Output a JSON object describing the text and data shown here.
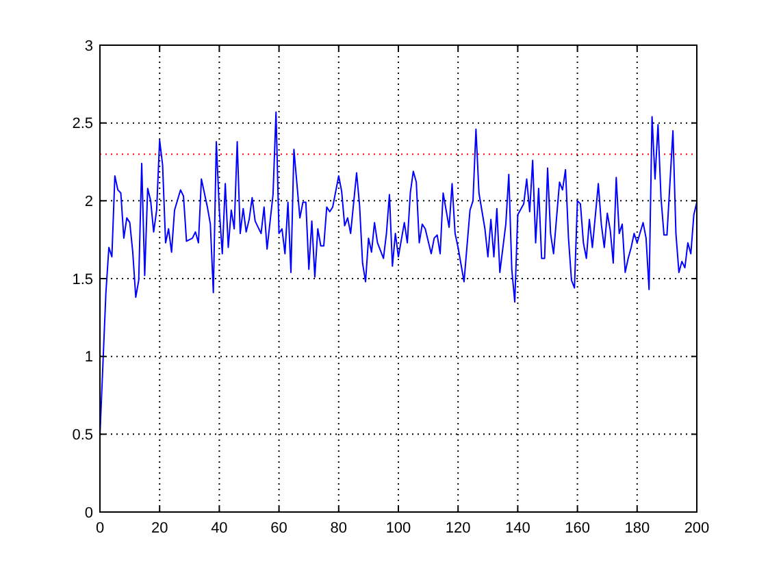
{
  "chart_data": {
    "type": "line",
    "xlim": [
      0,
      200
    ],
    "ylim": [
      0,
      3
    ],
    "xticks": [
      0,
      20,
      40,
      60,
      80,
      100,
      120,
      140,
      160,
      180,
      200
    ],
    "yticks": [
      0,
      0.5,
      1,
      1.5,
      2,
      2.5,
      3
    ],
    "grid": true,
    "line_style": "solid",
    "ref_lines": [
      {
        "axis": "y",
        "value": 2.3,
        "color": "#ff0000",
        "line_style": "dotted"
      }
    ],
    "series": [
      {
        "color": "#0000ff",
        "x": [
          0,
          2,
          3,
          4,
          5,
          6,
          7,
          8,
          9,
          10,
          11,
          12,
          13,
          14,
          15,
          16,
          17,
          18,
          19,
          20,
          21,
          22,
          23,
          24,
          25,
          27,
          28,
          29,
          31,
          32,
          33,
          34,
          36,
          37,
          38,
          39,
          40,
          41,
          42,
          43,
          44,
          45,
          46,
          47,
          48,
          49,
          50,
          51,
          52,
          54,
          55,
          56,
          58,
          59,
          60,
          61,
          62,
          63,
          64,
          65,
          67,
          68,
          69,
          70,
          71,
          72,
          73,
          74,
          75,
          76,
          77,
          78,
          80,
          81,
          82,
          83,
          84,
          86,
          87,
          88,
          89,
          90,
          91,
          92,
          93,
          95,
          96,
          97,
          98,
          99,
          100,
          102,
          103,
          104,
          105,
          106,
          107,
          108,
          109,
          111,
          112,
          113,
          114,
          115,
          117,
          118,
          119,
          120,
          122,
          124,
          125,
          126,
          127,
          129,
          130,
          131,
          132,
          133,
          134,
          136,
          137,
          138,
          139,
          140,
          142,
          143,
          144,
          145,
          146,
          147,
          148,
          149,
          150,
          151,
          152,
          154,
          155,
          156,
          157,
          158,
          159,
          160,
          161,
          162,
          163,
          164,
          165,
          167,
          168,
          169,
          170,
          171,
          172,
          173,
          174,
          175,
          176,
          177,
          178,
          179,
          180,
          182,
          183,
          184,
          185,
          186,
          187,
          188,
          189,
          190,
          192,
          193,
          194,
          195,
          196,
          197,
          198,
          199,
          200
        ],
        "values": [
          0.49,
          1.41,
          1.7,
          1.64,
          2.16,
          2.07,
          2.05,
          1.76,
          1.89,
          1.86,
          1.67,
          1.38,
          1.49,
          2.24,
          1.52,
          2.08,
          2.0,
          1.8,
          1.94,
          2.39,
          2.23,
          1.73,
          1.82,
          1.67,
          1.94,
          2.07,
          2.03,
          1.74,
          1.76,
          1.8,
          1.73,
          2.14,
          1.96,
          1.85,
          1.41,
          2.38,
          1.94,
          1.66,
          2.11,
          1.7,
          1.94,
          1.82,
          2.38,
          1.79,
          1.95,
          1.8,
          1.88,
          2.02,
          1.87,
          1.79,
          1.96,
          1.69,
          2.04,
          2.57,
          1.79,
          1.82,
          1.66,
          1.99,
          1.54,
          2.33,
          1.89,
          1.99,
          1.99,
          1.56,
          1.87,
          1.51,
          1.82,
          1.71,
          1.71,
          1.96,
          1.93,
          1.96,
          2.16,
          2.06,
          1.84,
          1.89,
          1.79,
          2.18,
          1.97,
          1.6,
          1.48,
          1.76,
          1.67,
          1.86,
          1.73,
          1.63,
          1.79,
          2.04,
          1.58,
          1.79,
          1.64,
          1.86,
          1.73,
          2.05,
          2.19,
          2.12,
          1.73,
          1.85,
          1.82,
          1.66,
          1.76,
          1.78,
          1.66,
          2.05,
          1.83,
          2.11,
          1.79,
          1.7,
          1.48,
          1.94,
          2.0,
          2.46,
          2.05,
          1.82,
          1.64,
          1.88,
          1.64,
          1.95,
          1.54,
          1.85,
          2.17,
          1.56,
          1.35,
          1.91,
          1.98,
          2.14,
          1.93,
          2.26,
          1.73,
          2.08,
          1.63,
          1.63,
          2.21,
          1.79,
          1.66,
          2.12,
          2.07,
          2.2,
          1.76,
          1.49,
          1.44,
          2.0,
          1.98,
          1.73,
          1.63,
          1.88,
          1.7,
          2.11,
          1.85,
          1.7,
          1.92,
          1.81,
          1.6,
          2.15,
          1.79,
          1.85,
          1.54,
          1.63,
          1.7,
          1.79,
          1.73,
          1.86,
          1.76,
          1.43,
          2.54,
          2.14,
          2.49,
          2.02,
          1.78,
          1.78,
          2.45,
          1.79,
          1.54,
          1.61,
          1.57,
          1.73,
          1.66,
          1.91,
          1.99
        ]
      }
    ]
  }
}
